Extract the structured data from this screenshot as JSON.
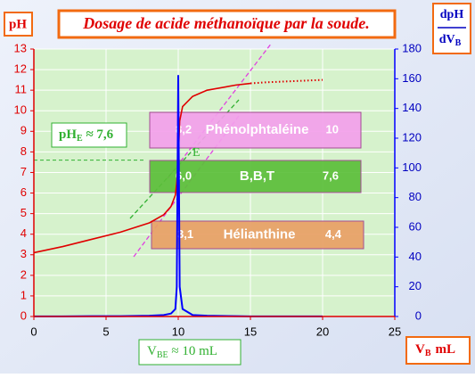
{
  "chart_data": {
    "type": "line",
    "title": "Dosage de acide méthanoïque  par la soude.",
    "y_label": "pH",
    "y2_label": {
      "top": "dpH",
      "bottom": "dV",
      "bottom_sub": "B"
    },
    "x_label": {
      "main": "V",
      "sub": "B",
      "rest": "mL"
    },
    "x": [
      0,
      2,
      4,
      6,
      8,
      9,
      9.5,
      9.8,
      9.9,
      10,
      10.1,
      10.3,
      11,
      12,
      14,
      15,
      16,
      18,
      20
    ],
    "xlim": [
      0,
      25
    ],
    "xticks": [
      0,
      5,
      10,
      15,
      20,
      25
    ],
    "ylim": [
      0,
      13
    ],
    "yticks": [
      0,
      1,
      2,
      3,
      4,
      5,
      6,
      7,
      8,
      9,
      10,
      11,
      12,
      13
    ],
    "y2lim": [
      0,
      180
    ],
    "y2ticks": [
      0,
      20,
      40,
      60,
      80,
      100,
      120,
      140,
      160,
      180
    ],
    "grid": true,
    "series": [
      {
        "color": "#e00000",
        "style": "solid",
        "values": [
          3.1,
          3.4,
          3.75,
          4.1,
          4.55,
          4.95,
          5.35,
          5.9,
          6.5,
          7.6,
          9.5,
          10.2,
          10.7,
          11.0,
          11.25,
          11.33,
          null,
          null,
          null
        ]
      },
      {
        "color": "#e00000",
        "style": "dotted",
        "values": [
          null,
          null,
          null,
          null,
          null,
          null,
          null,
          null,
          null,
          null,
          null,
          null,
          null,
          null,
          null,
          11.33,
          11.38,
          11.44,
          11.5
        ]
      },
      {
        "color": "#0000ff",
        "style": "solid",
        "axis": "y2",
        "values": [
          0.1,
          0.1,
          0.2,
          0.2,
          0.5,
          1,
          2,
          5,
          20,
          162,
          20,
          5,
          1,
          0.5,
          0.2,
          0.1,
          0.1,
          0.1,
          0.1
        ]
      }
    ],
    "annotations": {
      "phe": {
        "main": "pH",
        "sub": "E",
        "rest": " ≈ 7,6",
        "value": 7.6
      },
      "equivalence_point": "E",
      "vbe": {
        "main": "V",
        "sub": "BE",
        "rest": " ≈ 10 mL"
      }
    },
    "indicators": [
      {
        "name": "Phénolphtaléine",
        "low": "8,2",
        "high": "10",
        "color": "#f4a0ec"
      },
      {
        "name": "B,B,T",
        "low": "6,0",
        "high": "7,6",
        "color": "#5cbf3a"
      },
      {
        "name": "Hélianthine",
        "low": "3,1",
        "high": "4,4",
        "color": "#e9a066"
      }
    ]
  }
}
